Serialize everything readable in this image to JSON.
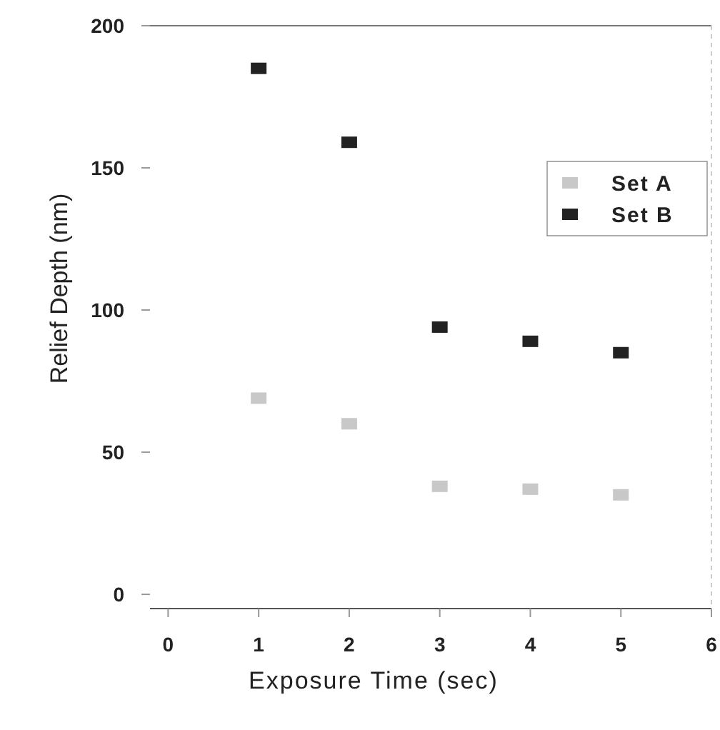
{
  "chart_data": {
    "type": "scatter",
    "xlabel": "Exposure Time (sec)",
    "ylabel": "Relief Depth (nm)",
    "x": [
      1,
      2,
      3,
      4,
      5
    ],
    "series": [
      {
        "name": "Set A",
        "color": "#c8c8c8",
        "values": [
          69,
          60,
          38,
          37,
          35
        ]
      },
      {
        "name": "Set B",
        "color": "#222222",
        "values": [
          185,
          159,
          94,
          89,
          85
        ]
      }
    ],
    "xlim": [
      -0.2,
      6
    ],
    "xticks": [
      0,
      1,
      2,
      3,
      4,
      5,
      6
    ],
    "ylim": [
      -5,
      200
    ],
    "yticks": [
      0,
      50,
      100,
      150,
      200
    ],
    "marker": "square",
    "legend": "top right",
    "grid": false
  }
}
